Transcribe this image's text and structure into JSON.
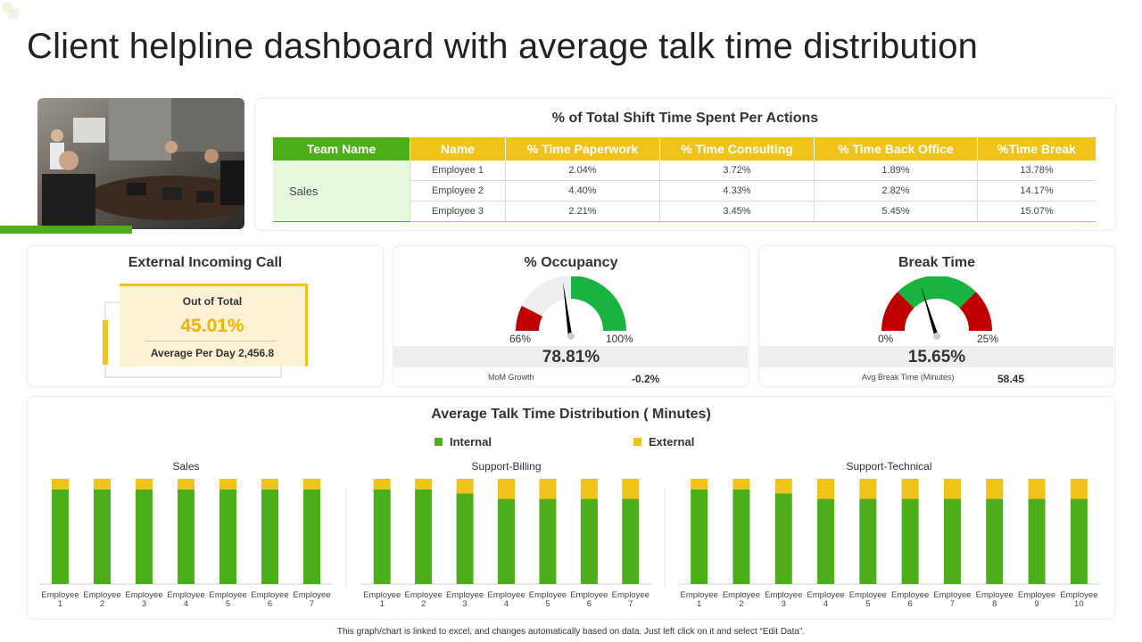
{
  "title": "Client helpline dashboard with average talk time distribution",
  "colors": {
    "green": "#4caf1a",
    "yellow": "#f0c31b",
    "red": "#c00000",
    "light_green": "#e6f9de"
  },
  "photo": {
    "description_icon": "meeting-photo"
  },
  "shift_table": {
    "title": "% of Total Shift Time Spent Per Actions",
    "headers": [
      "Team Name",
      "Name",
      "% Time Paperwork",
      "% Time Consulting",
      "% Time Back Office",
      "%Time Break"
    ],
    "team": "Sales",
    "rows": [
      [
        "Employee 1",
        "2.04%",
        "3.72%",
        "1.89%",
        "13.78%"
      ],
      [
        "Employee 2",
        "4.40%",
        "4.33%",
        "2.82%",
        "14.17%"
      ],
      [
        "Employee 3",
        "2.21%",
        "3.45%",
        "5.45%",
        "15.07%"
      ]
    ]
  },
  "external_call": {
    "title": "External Incoming Call",
    "out_of_total_label": "Out of Total",
    "percent": "45.01%",
    "avg_label": "Average Per Day",
    "avg_value": "2,456.8"
  },
  "occupancy": {
    "title": "% Occupancy",
    "min_label": "66%",
    "max_label": "100%",
    "value": "78.81%",
    "growth_label": "MoM Growth",
    "growth_value": "-0.2%"
  },
  "break_time": {
    "title": "Break Time",
    "min_label": "0%",
    "max_label": "25%",
    "value": "15.65%",
    "avg_label": "Avg Break Time (Minutes)",
    "avg_value": "58.45"
  },
  "chart_data": {
    "type": "bar",
    "title": "Average Talk Time Distribution ( Minutes)",
    "legend": [
      {
        "name": "Internal",
        "color": "#4caf1a"
      },
      {
        "name": "External",
        "color": "#f0c31b"
      }
    ],
    "groups": [
      {
        "name": "Sales",
        "categories": [
          "Employee 1",
          "Employee 2",
          "Employee 3",
          "Employee 4",
          "Employee 5",
          "Employee 6",
          "Employee 7"
        ],
        "series": [
          {
            "name": "Internal",
            "values": [
              90,
              90,
              90,
              90,
              90,
              90,
              90
            ]
          },
          {
            "name": "External",
            "values": [
              10,
              10,
              10,
              10,
              10,
              10,
              10
            ]
          }
        ]
      },
      {
        "name": "Support-Billing",
        "categories": [
          "Employee 1",
          "Employee 2",
          "Employee 3",
          "Employee 4",
          "Employee 5",
          "Employee 6",
          "Employee 7"
        ],
        "series": [
          {
            "name": "Internal",
            "values": [
              90,
              90,
              86,
              81,
              81,
              81,
              81
            ]
          },
          {
            "name": "External",
            "values": [
              10,
              10,
              14,
              19,
              19,
              19,
              19
            ]
          }
        ]
      },
      {
        "name": "Support-Technical",
        "categories": [
          "Employee 1",
          "Employee 2",
          "Employee 3",
          "Employee 4",
          "Employee 5",
          "Employee 6",
          "Employee 7",
          "Employee 8",
          "Employee 9",
          "Employee 10"
        ],
        "series": [
          {
            "name": "Internal",
            "values": [
              90,
              90,
              86,
              81,
              81,
              81,
              81,
              81,
              81,
              81
            ]
          },
          {
            "name": "External",
            "values": [
              10,
              10,
              14,
              19,
              19,
              19,
              19,
              19,
              19,
              19
            ]
          }
        ]
      }
    ]
  },
  "footer": "This graph/chart is linked to excel, and changes automatically based on data. Just left click on it and select “Edit Data”."
}
